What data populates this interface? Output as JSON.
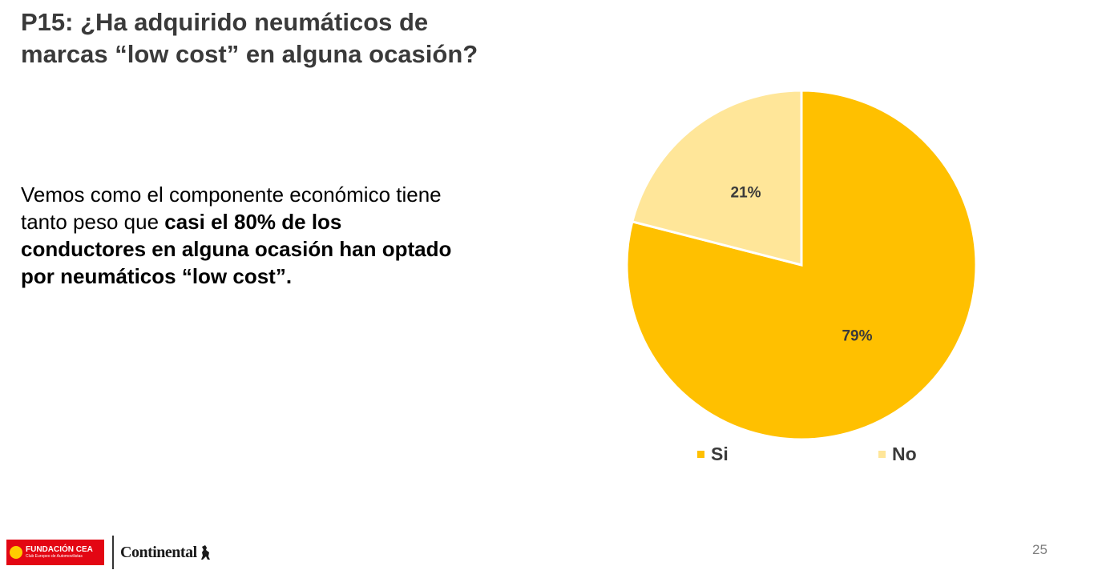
{
  "slide": {
    "title_line1": "P15: ¿Ha adquirido neumáticos de",
    "title_line2": "marcas “low cost” en alguna ocasión?",
    "text_normal_1": "Vemos como el componente económico tiene tanto peso que ",
    "text_bold": "casi el 80% de los conductores en alguna ocasión han optado por neumáticos “low cost”.",
    "page_number": "25"
  },
  "footer": {
    "cea_name": "FUNDACIÓN CEA",
    "cea_subtitle": "Club Europeo de Automovilistas",
    "continental": "Continental"
  },
  "chart_data": {
    "type": "pie",
    "categories": [
      "Si",
      "No"
    ],
    "values": [
      79,
      21
    ],
    "labels": [
      "79%",
      "21%"
    ],
    "colors": [
      "#FFC000",
      "#FFE699"
    ],
    "legend": "bottom",
    "start_angle_deg": 0,
    "direction": "clockwise"
  }
}
